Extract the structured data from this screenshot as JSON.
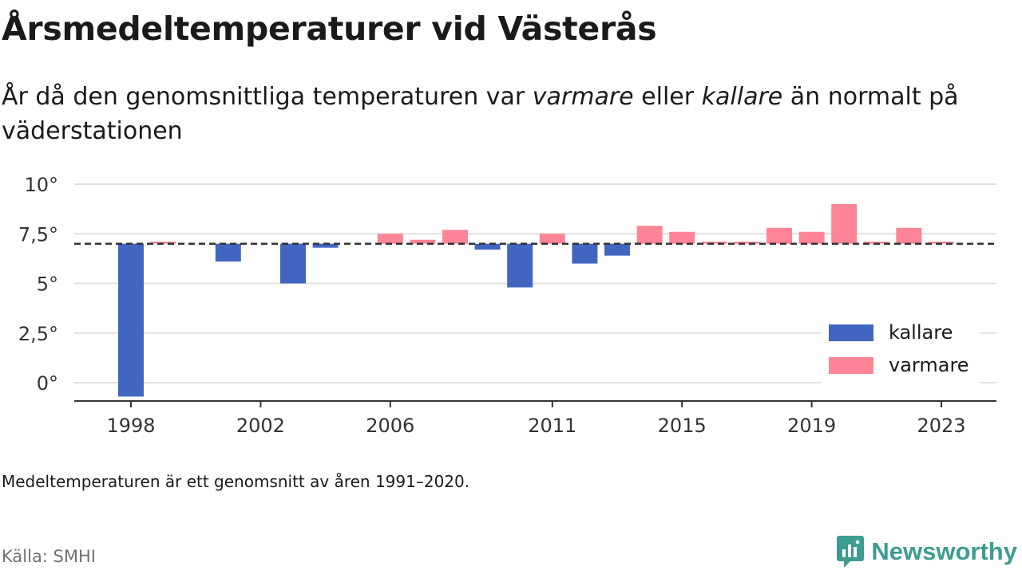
{
  "title": "Årsmedeltemperaturer vid Västerås",
  "subtitle": {
    "part1": "År då den genomsnittliga temperaturen var ",
    "warmer": "varmare",
    "part2": " eller ",
    "colder": "kallare",
    "part3": " än normalt på väderstationen"
  },
  "footnote": "Medeltemperaturen är ett genomsnitt av åren 1991–2020.",
  "source": "Källa: SMHI",
  "brand": {
    "name": "Newsworthy",
    "icon": "newsworthy-logo-icon",
    "color": "#3d9c8f"
  },
  "colors": {
    "colder": "#4266c0",
    "warmer": "#ff8596",
    "grid": "#e0e0e0",
    "axis": "#333333"
  },
  "chart_data": {
    "type": "bar",
    "baseline": 7.0,
    "ylim": [
      -0.9,
      10.4
    ],
    "yticks": [
      {
        "value": 0,
        "label": "0°"
      },
      {
        "value": 2.5,
        "label": "2,5°"
      },
      {
        "value": 5,
        "label": "5°"
      },
      {
        "value": 7.5,
        "label": "7,5°"
      },
      {
        "value": 10,
        "label": "10°"
      }
    ],
    "xticks": [
      "1998",
      "2002",
      "2006",
      "2011",
      "2015",
      "2019",
      "2023"
    ],
    "legend": {
      "position": "bottom-right",
      "items": [
        {
          "key": "colder",
          "label": "kallare"
        },
        {
          "key": "warmer",
          "label": "varmare"
        }
      ]
    },
    "years": [
      1998,
      1999,
      2000,
      2001,
      2002,
      2003,
      2004,
      2005,
      2006,
      2007,
      2008,
      2009,
      2010,
      2011,
      2012,
      2013,
      2014,
      2015,
      2016,
      2017,
      2018,
      2019,
      2020,
      2021,
      2022,
      2023
    ],
    "values": [
      -0.7,
      7.1,
      null,
      6.1,
      null,
      5.0,
      6.8,
      null,
      7.5,
      7.2,
      7.7,
      6.7,
      4.8,
      7.5,
      6.0,
      6.4,
      7.9,
      7.6,
      7.1,
      7.1,
      7.8,
      7.6,
      9.0,
      7.1,
      7.8,
      7.1
    ]
  }
}
